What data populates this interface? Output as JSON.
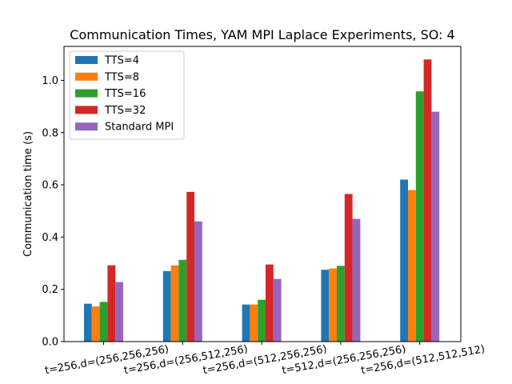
{
  "chart_data": {
    "type": "bar",
    "title": "Communication Times, YAM MPI Laplace Experiments, SO: 4",
    "xlabel": "",
    "ylabel": "Communication time (s)",
    "ylim": [
      0,
      1.13
    ],
    "yticks": [
      0.0,
      0.2,
      0.4,
      0.6,
      0.8,
      1.0
    ],
    "ytick_labels": [
      "0.0",
      "0.2",
      "0.4",
      "0.6",
      "0.8",
      "1.0"
    ],
    "categories": [
      "t=256,d=(256,256,256)",
      "t=256,d=(256,512,256)",
      "t=256,d=(512,256,256)",
      "t=512,d=(256,256,256)",
      "t=256,d=(512,512,512)"
    ],
    "series": [
      {
        "name": "TTS=4",
        "color": "#1f77b4",
        "values": [
          0.145,
          0.27,
          0.142,
          0.275,
          0.62
        ]
      },
      {
        "name": "TTS=8",
        "color": "#ff7f0e",
        "values": [
          0.135,
          0.292,
          0.142,
          0.28,
          0.58
        ]
      },
      {
        "name": "TTS=16",
        "color": "#2ca02c",
        "values": [
          0.152,
          0.313,
          0.16,
          0.29,
          0.958
        ]
      },
      {
        "name": "TTS=32",
        "color": "#d62728",
        "values": [
          0.292,
          0.573,
          0.295,
          0.565,
          1.08
        ]
      },
      {
        "name": "Standard MPI",
        "color": "#9467bd",
        "values": [
          0.228,
          0.46,
          0.24,
          0.47,
          0.88
        ]
      }
    ],
    "legend_position": "top-left",
    "grid": false
  }
}
